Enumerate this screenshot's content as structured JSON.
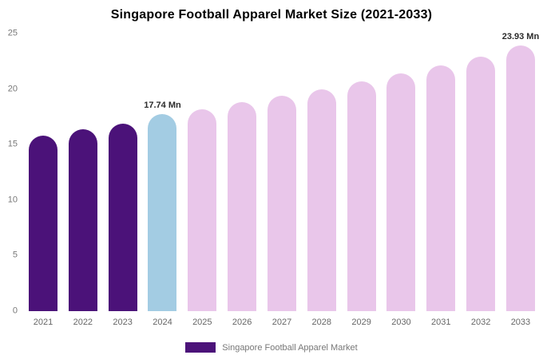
{
  "title": "Singapore Football Apparel Market Size (2021-2033)",
  "legend": {
    "label": "Singapore Football Apparel Market",
    "swatch_color": "#4b1279"
  },
  "colors": {
    "historical": "#4b1279",
    "current_year": "#a3cce3",
    "forecast": "#e9c6ea"
  },
  "chart_data": {
    "type": "bar",
    "title": "Singapore Football Apparel Market Size (2021-2033)",
    "categories": [
      "2021",
      "2022",
      "2023",
      "2024",
      "2025",
      "2026",
      "2027",
      "2028",
      "2029",
      "2030",
      "2031",
      "2032",
      "2033"
    ],
    "values": [
      15.8,
      16.4,
      16.9,
      17.74,
      18.2,
      18.8,
      19.4,
      20.0,
      20.7,
      21.4,
      22.1,
      22.9,
      23.93
    ],
    "bar_colors": [
      "#4b1279",
      "#4b1279",
      "#4b1279",
      "#a3cce3",
      "#e9c6ea",
      "#e9c6ea",
      "#e9c6ea",
      "#e9c6ea",
      "#e9c6ea",
      "#e9c6ea",
      "#e9c6ea",
      "#e9c6ea",
      "#e9c6ea"
    ],
    "annotations": [
      {
        "index": 3,
        "text": "17.74 Mn"
      },
      {
        "index": 12,
        "text": "23.93 Mn"
      }
    ],
    "xlabel": "",
    "ylabel": "",
    "ylim": [
      0,
      25
    ],
    "yticks": [
      0,
      5,
      10,
      15,
      20,
      25
    ],
    "grid": false,
    "legend_position": "bottom",
    "unit": "Mn"
  }
}
